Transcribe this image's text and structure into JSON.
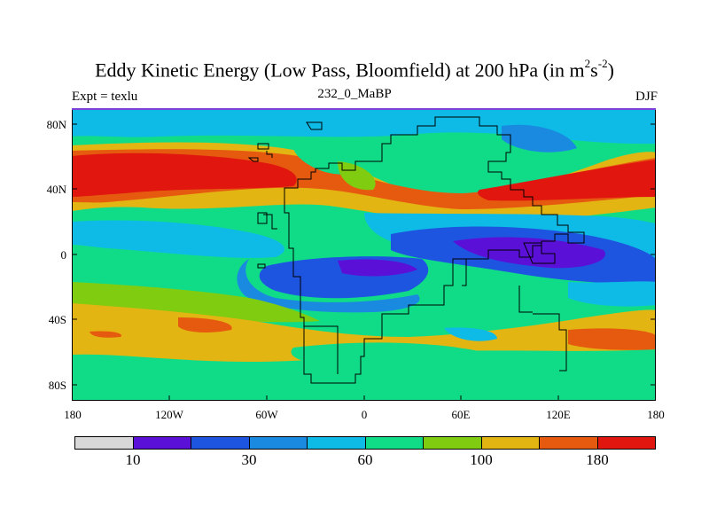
{
  "title": {
    "main": "Eddy Kinetic Energy (Low Pass, Bloomfield) at 200 hPa (in m",
    "sup1": "2",
    "mid": "s",
    "sup2": "-2",
    "close": ")"
  },
  "left_string": "Expt = texlu",
  "center_string": "232_0_MaBP",
  "right_string": "DJF",
  "map": {
    "lat_ticks": [
      "80N",
      "40N",
      "0",
      "40S",
      "80S"
    ],
    "lon_ticks": [
      "180",
      "120W",
      "60W",
      "0",
      "60E",
      "120E",
      "180"
    ],
    "colors": {
      "gray": "#d8d8d8",
      "violet": "#5a10d6",
      "blue": "#1e55e0",
      "mid_blue": "#1a8ae0",
      "cyan": "#0ebbe6",
      "green": "#10dc88",
      "lime": "#80cc10",
      "yellow": "#e3b512",
      "orange": "#e65a10",
      "red": "#e0160f",
      "frame": "#7a40d8"
    }
  },
  "colorbar": {
    "colors": [
      "#d8d8d8",
      "#5a10d6",
      "#1e55e0",
      "#1a8ae0",
      "#0ebbe6",
      "#10dc88",
      "#80cc10",
      "#e3b512",
      "#e65a10",
      "#e0160f"
    ],
    "labels": [
      "10",
      "30",
      "60",
      "100",
      "180"
    ]
  }
}
